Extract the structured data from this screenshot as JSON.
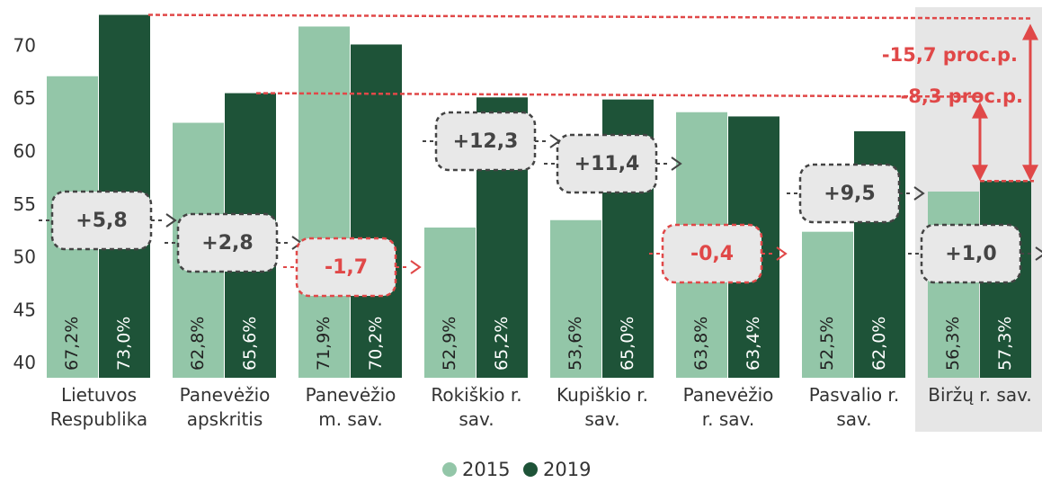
{
  "chart_data": {
    "type": "bar",
    "categories": [
      "Lietuvos\nRespublika",
      "Panevėžio\napskritis",
      "Panevėžio\nm. sav.",
      "Rokiškio r.\nsav.",
      "Kupiškio r.\nsav.",
      "Panevėžio\nr. sav.",
      "Pasvalio r.\nsav.",
      "Biržų r. sav."
    ],
    "series": [
      {
        "name": "2015",
        "color": "#93c6a8",
        "values": [
          67.2,
          62.8,
          71.9,
          52.9,
          53.6,
          63.8,
          52.5,
          56.3
        ],
        "value_labels": [
          "67,2%",
          "62,8%",
          "71,9%",
          "52,9%",
          "53,6%",
          "63,8%",
          "52,5%",
          "56,3%"
        ]
      },
      {
        "name": "2019",
        "color": "#1e5338",
        "values": [
          73.0,
          65.6,
          70.2,
          65.2,
          65.0,
          63.4,
          62.0,
          57.3
        ],
        "value_labels": [
          "73,0%",
          "65,6%",
          "70,2%",
          "65,2%",
          "65,0%",
          "63,4%",
          "62,0%",
          "57,3%"
        ]
      }
    ],
    "differences": [
      "+5,8",
      "+2,8",
      "-1,7",
      "+12,3",
      "+11,4",
      "-0,4",
      "+9,5",
      "+1,0"
    ],
    "gap_annotations": [
      "-15,7 proc.p.",
      "-8,3 proc.p."
    ],
    "highlight_category": 7,
    "ylim": [
      38.7,
      73.3
    ],
    "yticks": [
      40,
      45,
      50,
      55,
      60,
      65,
      70
    ],
    "legend": "bottom"
  }
}
